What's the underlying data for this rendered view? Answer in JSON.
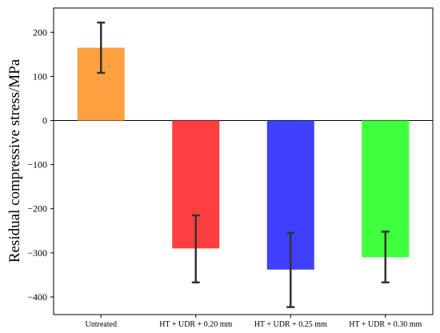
{
  "chart_data": {
    "type": "bar",
    "title": "",
    "xlabel": "",
    "ylabel": "Residual compressive stress/MPa",
    "ylim": [
      -440,
      255
    ],
    "yticks": [
      200,
      100,
      0,
      -100,
      -200,
      -300,
      -400
    ],
    "ytick_labels": [
      "200",
      "100",
      "0",
      "−100",
      "−200",
      "−300",
      "−400"
    ],
    "categories": [
      "Untreated",
      "HT + UDR + 0.20 mm",
      "HT + UDR + 0.25 mm",
      "HT + UDR + 0.30 mm"
    ],
    "values": [
      165,
      -290,
      -338,
      -310
    ],
    "error_low": [
      108,
      -367,
      -423,
      -367
    ],
    "error_high": [
      222,
      -215,
      -255,
      -252
    ],
    "colors": [
      "#ffa040",
      "#ff3f3f",
      "#3f3fff",
      "#3fff3f"
    ],
    "grid": false,
    "legend": "none"
  }
}
